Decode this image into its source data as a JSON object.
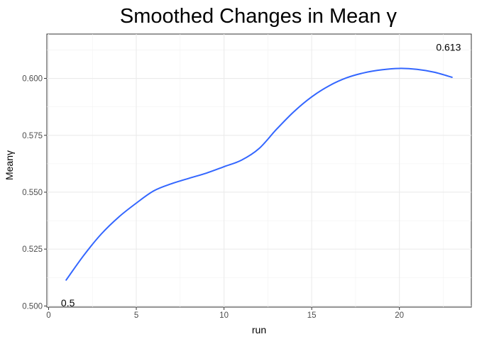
{
  "chart_data": {
    "type": "line",
    "title": "Smoothed Changes in Mean γ",
    "xlabel": "run",
    "ylabel": "Meanγ",
    "xlim": [
      -0.1,
      24.1
    ],
    "ylim": [
      0.4995,
      0.6195
    ],
    "x_ticks": [
      0,
      5,
      10,
      15,
      20
    ],
    "x_tick_labels": [
      "0",
      "5",
      "10",
      "15",
      "20"
    ],
    "y_ticks": [
      0.5,
      0.525,
      0.55,
      0.575,
      0.6
    ],
    "y_tick_labels": [
      "0.500",
      "0.525",
      "0.550",
      "0.575",
      "0.600"
    ],
    "grid": true,
    "legend": "none",
    "series": [
      {
        "color": "#3366FF",
        "x": [
          1,
          2,
          3,
          4,
          5,
          6,
          7,
          8,
          9,
          10,
          11,
          12,
          13,
          14,
          15,
          16,
          17,
          18,
          19,
          20,
          21,
          22,
          23
        ],
        "y": [
          0.5114,
          0.5222,
          0.5316,
          0.5391,
          0.5452,
          0.5506,
          0.5537,
          0.5561,
          0.5584,
          0.5612,
          0.5641,
          0.5692,
          0.5777,
          0.5855,
          0.5919,
          0.5968,
          0.6003,
          0.6025,
          0.6038,
          0.6044,
          0.604,
          0.6027,
          0.6005
        ]
      }
    ],
    "annotations": [
      {
        "label": "0.5",
        "x": 1.1,
        "y": 0.5013,
        "anchor": "middle"
      },
      {
        "label": "0.613",
        "x": 22.8,
        "y": 0.6138,
        "anchor": "middle"
      }
    ]
  }
}
